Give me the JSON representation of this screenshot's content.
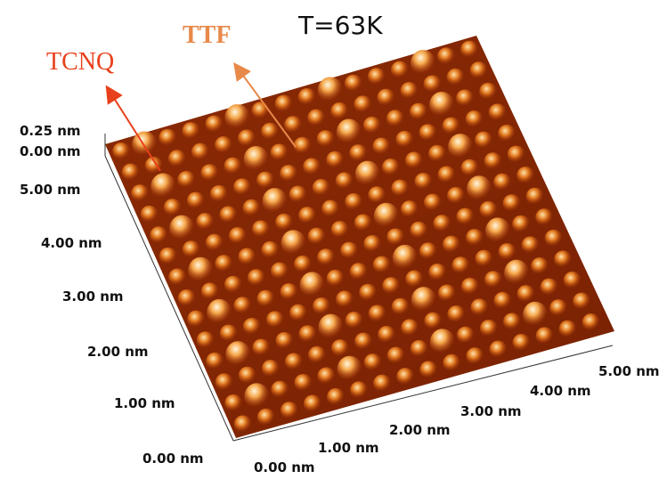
{
  "title": "T=63K",
  "labels": {
    "tcnq": "TCNQ",
    "ttf": "TTF"
  },
  "z_axis": [
    "0.25 nm",
    "0.00 nm"
  ],
  "y_axis": [
    "5.00 nm",
    "4.00 nm",
    "3.00 nm",
    "2.00 nm",
    "1.00 nm",
    "0.00 nm"
  ],
  "x_axis": [
    "0.00 nm",
    "1.00 nm",
    "2.00 nm",
    "3.00 nm",
    "4.00 nm",
    "5.00 nm"
  ]
}
